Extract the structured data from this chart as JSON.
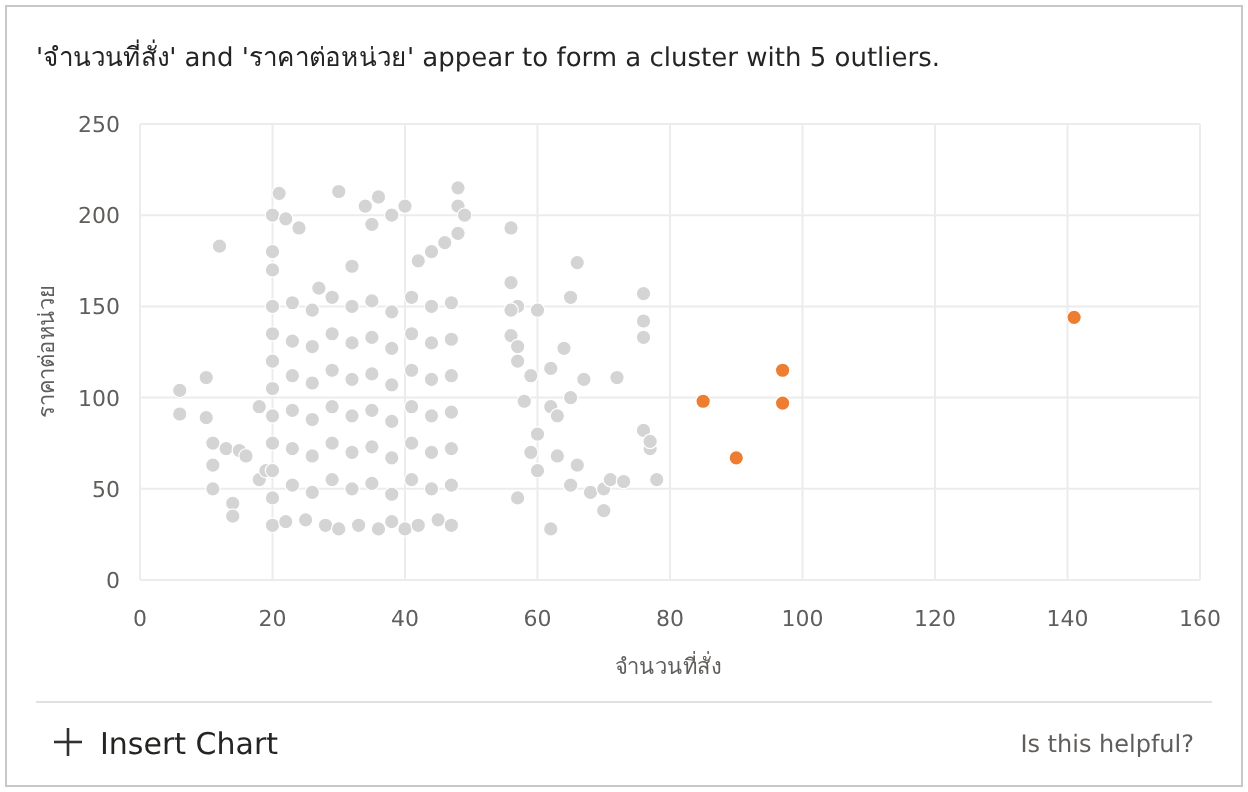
{
  "chart_data": {
    "type": "scatter",
    "title": "'จำนวนที่สั่ง' and 'ราคาต่อหน่วย' appear to form a cluster with 5 outliers.",
    "xlabel": "จำนวนที่สั่ง",
    "ylabel": "ราคาต่อหน่วย",
    "annotations": [
      "Insert Chart",
      "Is this helpful?"
    ],
    "xlim": [
      0,
      160
    ],
    "xticks": [
      0,
      20,
      40,
      60,
      80,
      100,
      120,
      140,
      160
    ],
    "ylim": [
      0,
      250
    ],
    "yticks": [
      0,
      50,
      100,
      150,
      200,
      250
    ],
    "grid": true,
    "marker": "circle",
    "series": [
      {
        "color": "#d4d4d4",
        "x": [
          6,
          6,
          10,
          10,
          11,
          11,
          12,
          11,
          13,
          15,
          16,
          14,
          14,
          18,
          18,
          19,
          20,
          20,
          20,
          20,
          20,
          20,
          20,
          20,
          20,
          20,
          20,
          20,
          21,
          22,
          24,
          27,
          30,
          32,
          34,
          35,
          36,
          38,
          40,
          42,
          44,
          46,
          48,
          48,
          49,
          48,
          22,
          25,
          28,
          30,
          33,
          36,
          38,
          40,
          42,
          45,
          47,
          23,
          23,
          23,
          23,
          23,
          23,
          26,
          26,
          26,
          26,
          26,
          26,
          29,
          29,
          29,
          29,
          29,
          29,
          32,
          32,
          32,
          32,
          32,
          32,
          35,
          35,
          35,
          35,
          35,
          35,
          38,
          38,
          38,
          38,
          38,
          38,
          41,
          41,
          41,
          41,
          41,
          41,
          44,
          44,
          44,
          44,
          44,
          44,
          47,
          47,
          47,
          47,
          47,
          47,
          56,
          56,
          57,
          56,
          56,
          57,
          60,
          59,
          62,
          65,
          66,
          64,
          65,
          67,
          72,
          76,
          76,
          76,
          76,
          77,
          77,
          57,
          58,
          62,
          60,
          63,
          60,
          66,
          65,
          68,
          70,
          70,
          71,
          73,
          78,
          62,
          63,
          59,
          57
        ],
        "values": [
          104,
          91,
          111,
          89,
          75,
          63,
          183,
          50,
          72,
          71,
          68,
          42,
          35,
          95,
          55,
          60,
          200,
          180,
          150,
          120,
          90,
          60,
          30,
          45,
          170,
          135,
          105,
          75,
          212,
          198,
          193,
          160,
          213,
          172,
          205,
          195,
          210,
          200,
          205,
          175,
          180,
          185,
          205,
          215,
          200,
          190,
          32,
          33,
          30,
          28,
          30,
          28,
          32,
          28,
          30,
          33,
          30,
          52,
          72,
          93,
          112,
          131,
          152,
          48,
          68,
          88,
          108,
          128,
          148,
          55,
          75,
          95,
          115,
          135,
          155,
          50,
          70,
          90,
          110,
          130,
          150,
          53,
          73,
          93,
          113,
          133,
          153,
          47,
          67,
          87,
          107,
          127,
          147,
          55,
          75,
          95,
          115,
          135,
          155,
          50,
          70,
          90,
          110,
          130,
          150,
          52,
          72,
          92,
          112,
          132,
          152,
          193,
          163,
          150,
          148,
          134,
          128,
          148,
          112,
          116,
          155,
          174,
          127,
          100,
          110,
          111,
          157,
          142,
          133,
          82,
          72,
          76,
          120,
          98,
          95,
          80,
          68,
          60,
          63,
          52,
          48,
          38,
          50,
          55,
          54,
          55,
          28,
          90,
          70,
          45
        ]
      },
      {
        "color": "#ed7d31",
        "x": [
          85,
          90,
          97,
          97,
          141
        ],
        "values": [
          98,
          67,
          115,
          97,
          144
        ]
      }
    ]
  }
}
